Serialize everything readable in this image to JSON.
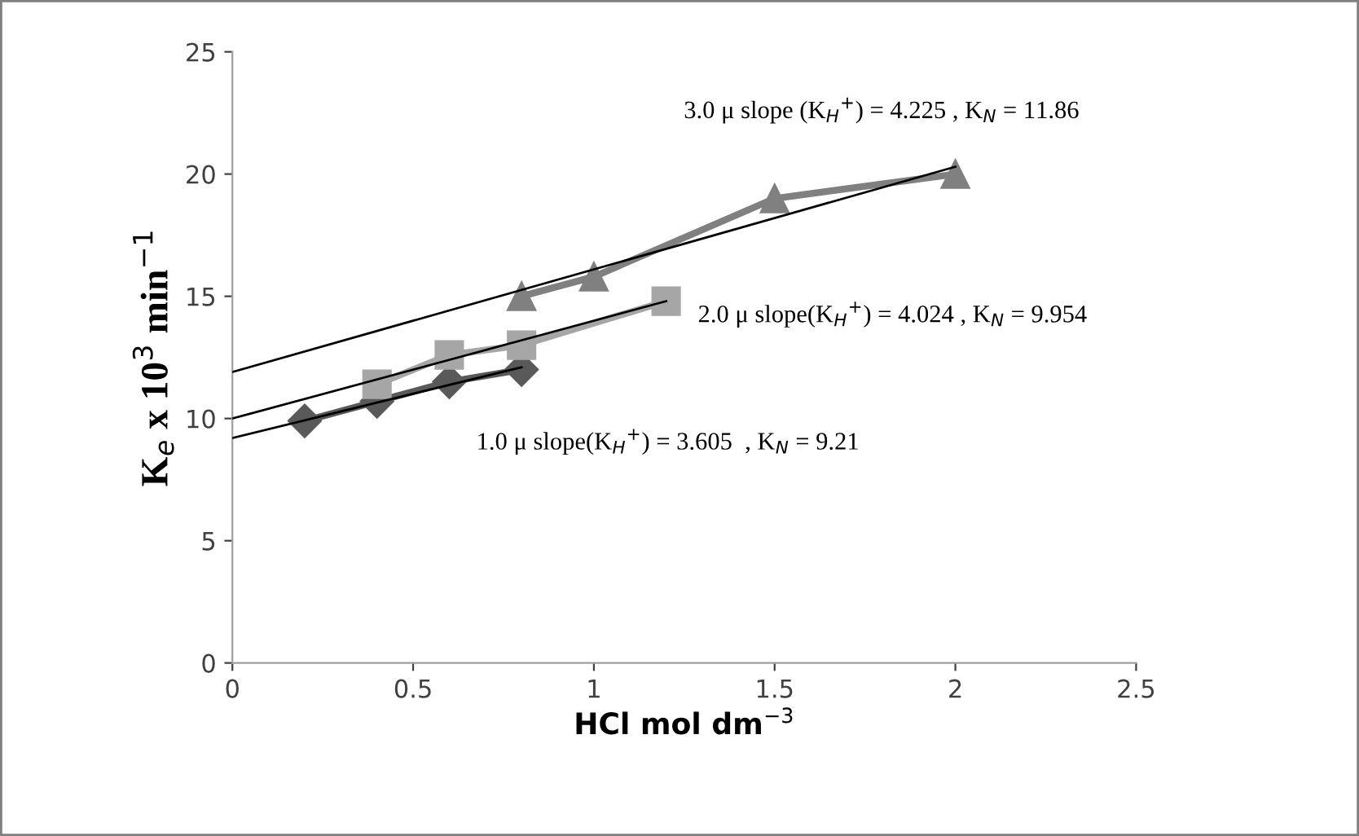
{
  "chart_data": {
    "type": "line",
    "xlabel": "HCl mol dm$^{−3}$",
    "ylabel": "K$_{e}$ x 10$^{3}$ min$^{−1}$",
    "xlim": [
      0,
      2.5
    ],
    "xticks": [
      0,
      0.5,
      1,
      1.5,
      2,
      2.5
    ],
    "ylim": [
      0,
      25
    ],
    "yticks": [
      0,
      5,
      10,
      15,
      20,
      25
    ],
    "grid": false,
    "legend": false,
    "series": [
      {
        "name": "1.0 μ slope(K$_{H}$$^{+}$) = 3.605  , K$_{N}$ = 9.21",
        "color": "#595959",
        "marker": "diamond",
        "x": [
          0.2,
          0.4,
          0.6,
          0.8
        ],
        "values": [
          9.9,
          10.7,
          11.5,
          12.0
        ]
      },
      {
        "name": "2.0 μ slope(K$_{H}$$^{+}$) = 4.024 , K$_{N}$ = 9.954",
        "color": "#a6a6a6",
        "marker": "square",
        "x": [
          0.4,
          0.6,
          0.8,
          1.2
        ],
        "values": [
          11.4,
          12.6,
          13.0,
          14.8
        ]
      },
      {
        "name": "3.0 μ slope (K$_{H}$$^{+}$) = 4.225 , K$_{N}$ = 11.86",
        "color": "#808080",
        "marker": "triangle",
        "x": [
          0.8,
          1.0,
          1.5,
          2.0
        ],
        "values": [
          15.0,
          15.8,
          19.0,
          20.0
        ]
      },
      {
        "color": "#000000",
        "marker": "none",
        "x": [
          0,
          0.8
        ],
        "values": [
          9.2,
          12.1
        ]
      },
      {
        "color": "#000000",
        "marker": "none",
        "x": [
          0,
          1.2
        ],
        "values": [
          10.0,
          14.8
        ]
      },
      {
        "color": "#000000",
        "marker": "none",
        "x": [
          0,
          2.0
        ],
        "values": [
          11.9,
          20.3
        ]
      }
    ]
  }
}
